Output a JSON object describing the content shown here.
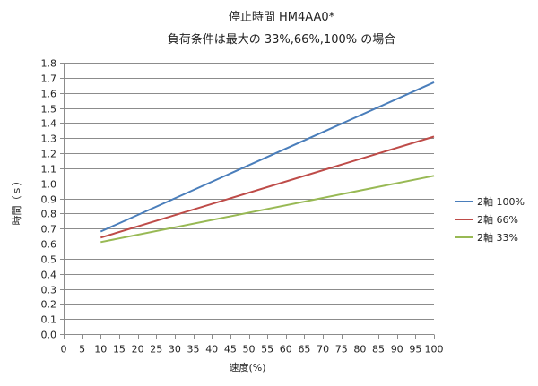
{
  "chart_data": {
    "type": "line",
    "title": "停止時間 HM4AA0*",
    "subtitle": "負荷条件は最大の 33%,66%,100% の場合",
    "xlabel": "速度(%)",
    "ylabel": "時間（ｓ）",
    "xlim": [
      0,
      100
    ],
    "ylim": [
      0,
      1.8
    ],
    "xticks": [
      0,
      5,
      10,
      15,
      20,
      25,
      30,
      35,
      40,
      45,
      50,
      55,
      60,
      65,
      70,
      75,
      80,
      85,
      90,
      95,
      100
    ],
    "yticks": [
      "0.0",
      "0.1",
      "0.2",
      "0.3",
      "0.4",
      "0.5",
      "0.6",
      "0.7",
      "0.8",
      "0.9",
      "1.0",
      "1.1",
      "1.2",
      "1.3",
      "1.4",
      "1.5",
      "1.6",
      "1.7",
      "1.8"
    ],
    "grid": true,
    "legend_position": "right",
    "series": [
      {
        "name": "2軸 100%",
        "color": "#4a7ebb",
        "x": [
          10,
          100
        ],
        "y": [
          0.68,
          1.67
        ]
      },
      {
        "name": "2軸 66%",
        "color": "#be4b48",
        "x": [
          10,
          100
        ],
        "y": [
          0.64,
          1.31
        ]
      },
      {
        "name": "2軸 33%",
        "color": "#98b954",
        "x": [
          10,
          100
        ],
        "y": [
          0.61,
          1.05
        ]
      }
    ]
  }
}
